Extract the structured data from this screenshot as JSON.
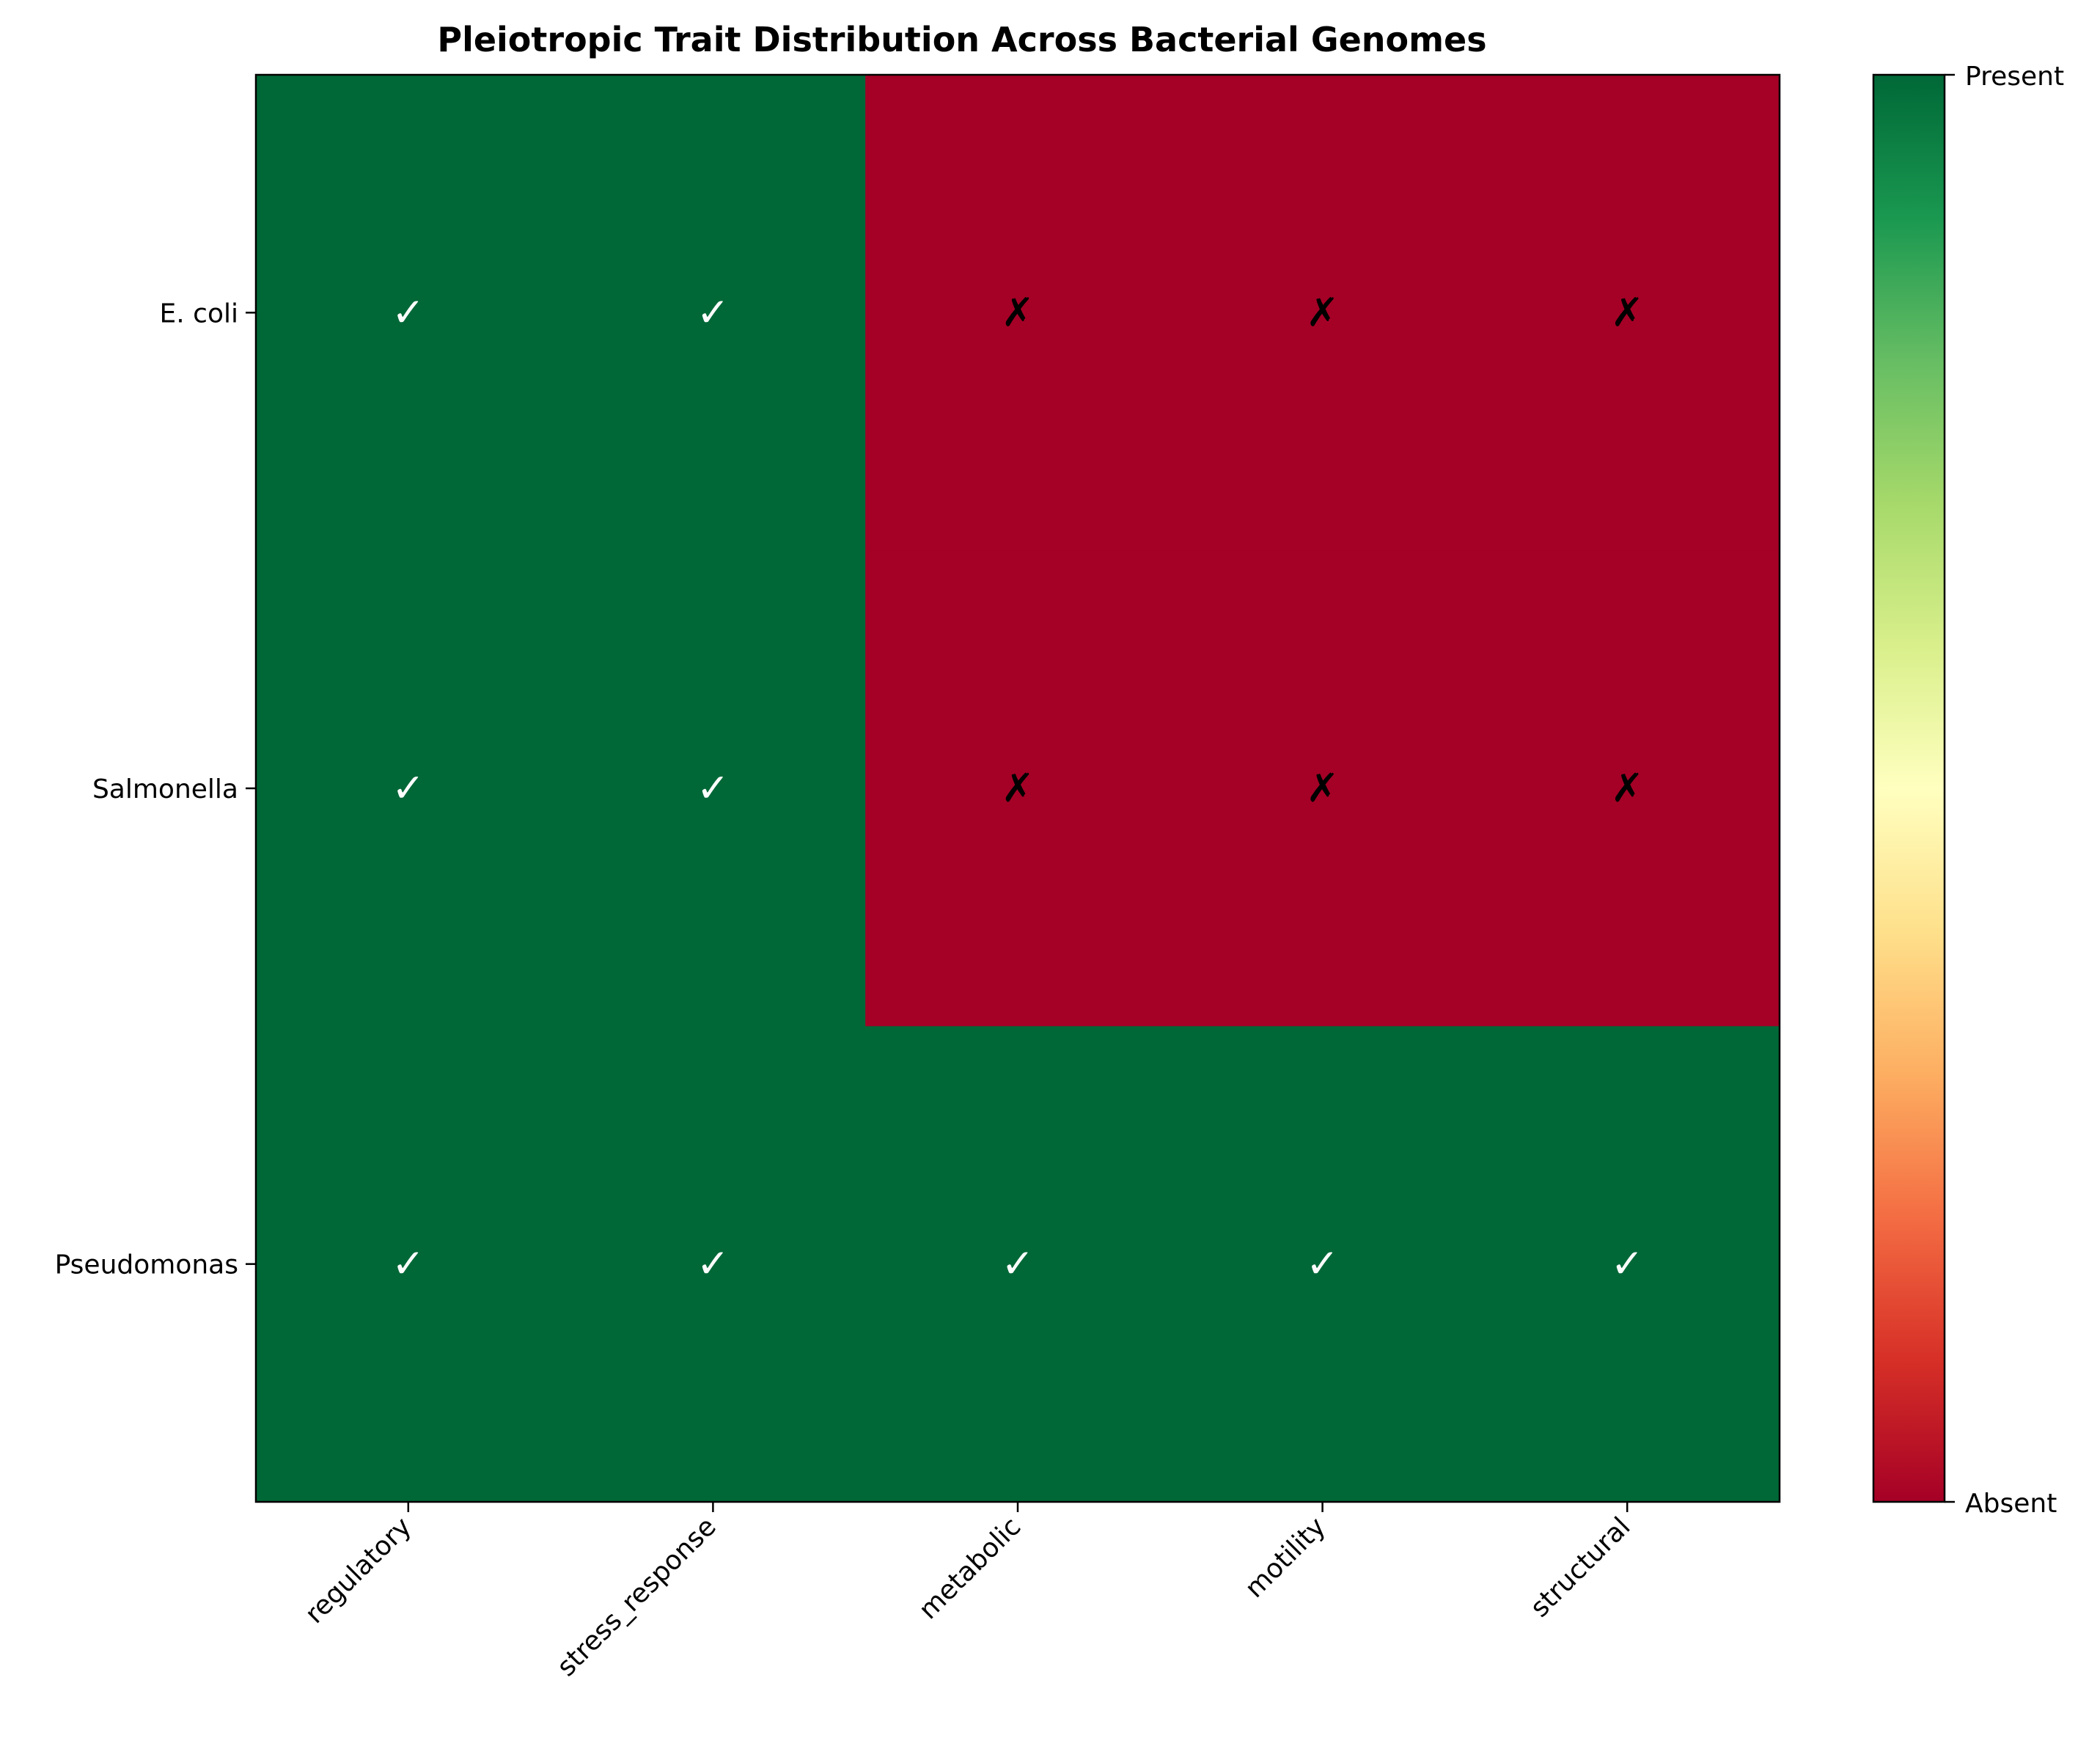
{
  "chart_data": {
    "type": "heatmap",
    "title": "Pleiotropic Trait Distribution Across Bacterial Genomes",
    "xlabel": "",
    "ylabel": "",
    "x_categories": [
      "regulatory",
      "stress_response",
      "metabolic",
      "motility",
      "structural"
    ],
    "y_categories": [
      "E. coli",
      "Salmonella",
      "Pseudomonas"
    ],
    "values": [
      [
        1,
        1,
        0,
        0,
        0
      ],
      [
        1,
        1,
        0,
        0,
        0
      ],
      [
        1,
        1,
        1,
        1,
        1
      ]
    ],
    "cell_labels": {
      "present": "✓",
      "absent": "✗"
    },
    "colorbar": {
      "range": [
        0,
        1
      ],
      "ticks": [
        0,
        1
      ],
      "tick_labels": [
        "Absent",
        "Present"
      ],
      "colormap": "RdYlGn",
      "stops": [
        "#a50026",
        "#d73027",
        "#f46d43",
        "#fdae61",
        "#fee08b",
        "#ffffbf",
        "#d9ef8b",
        "#a6d96a",
        "#66bd63",
        "#1a9850",
        "#006837"
      ]
    },
    "colors": {
      "present": "#006837",
      "absent": "#a50026",
      "present_mark": "#ffffff",
      "absent_mark": "#000000"
    },
    "grid": false,
    "legend": "colorbar-right"
  }
}
